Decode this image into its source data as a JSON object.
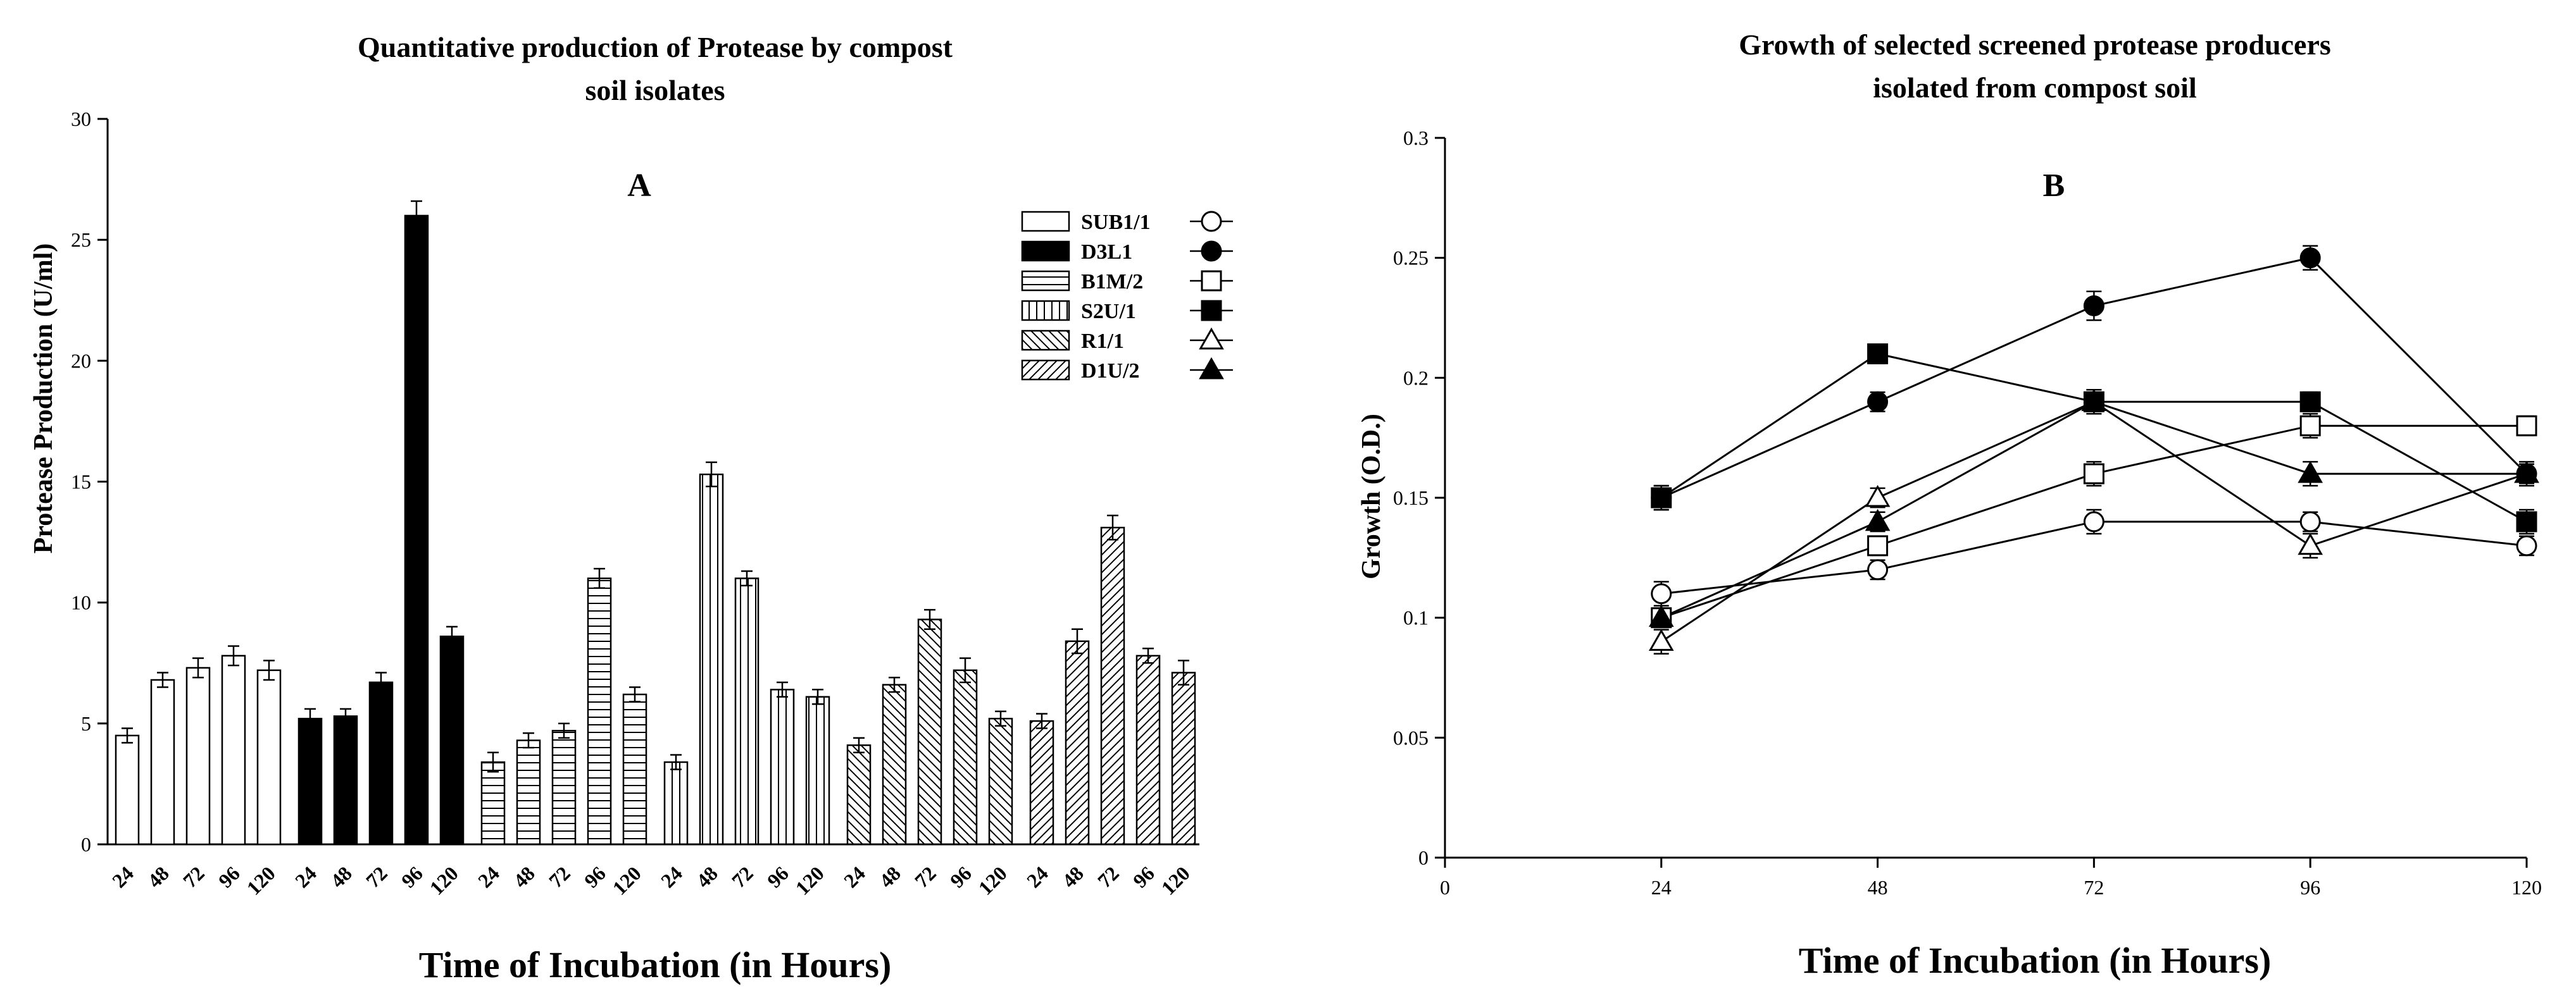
{
  "chart_data": [
    {
      "type": "bar",
      "panel": "A",
      "title": [
        "Quantitative production of Protease by compost",
        "soil isolates"
      ],
      "xlabel": "Time of Incubation (in Hours)",
      "ylabel": "Protease Production (U/ml)",
      "ylim": [
        0,
        30
      ],
      "yticks": [
        "0",
        "5",
        "10",
        "15",
        "20",
        "25",
        "30"
      ],
      "categories": [
        "24",
        "48",
        "72",
        "96",
        "120"
      ],
      "series": [
        {
          "name": "SUB1/1",
          "fill": "white",
          "values": [
            4.5,
            6.8,
            7.3,
            7.8,
            7.2
          ],
          "errors": [
            0.3,
            0.3,
            0.4,
            0.4,
            0.4
          ]
        },
        {
          "name": "D3L1",
          "fill": "black",
          "values": [
            5.2,
            5.3,
            6.7,
            26.0,
            8.6
          ],
          "errors": [
            0.4,
            0.3,
            0.4,
            0.6,
            0.4
          ]
        },
        {
          "name": "B1M/2",
          "fill": "hlines",
          "values": [
            3.4,
            4.3,
            4.7,
            11.0,
            6.2
          ],
          "errors": [
            0.4,
            0.3,
            0.3,
            0.4,
            0.3
          ]
        },
        {
          "name": "S2U/1",
          "fill": "vlines",
          "values": [
            3.4,
            15.3,
            11.0,
            6.4,
            6.1
          ],
          "errors": [
            0.3,
            0.5,
            0.3,
            0.3,
            0.3
          ]
        },
        {
          "name": "R1/1",
          "fill": "backdiag",
          "values": [
            4.1,
            6.6,
            9.3,
            7.2,
            5.2
          ],
          "errors": [
            0.3,
            0.3,
            0.4,
            0.5,
            0.3
          ]
        },
        {
          "name": "D1U/2",
          "fill": "fwddiag",
          "values": [
            5.1,
            8.4,
            13.1,
            7.8,
            7.1
          ],
          "errors": [
            0.3,
            0.5,
            0.5,
            0.3,
            0.5
          ]
        }
      ],
      "legend_position": "top-right"
    },
    {
      "type": "line",
      "panel": "B",
      "title": [
        "Growth of selected screened protease producers",
        "isolated from compost soil"
      ],
      "xlabel": "Time of Incubation (in Hours)",
      "ylabel": "Growth (O.D.)",
      "xlim": [
        0,
        120
      ],
      "xticks": [
        "0",
        "24",
        "48",
        "72",
        "96",
        "120"
      ],
      "ylim": [
        0,
        0.3
      ],
      "yticks": [
        "0",
        "0.05",
        "0.1",
        "0.15",
        "0.2",
        "0.25",
        "0.3"
      ],
      "x": [
        24,
        48,
        72,
        96,
        120
      ],
      "series": [
        {
          "name": "SUB1/1",
          "marker": "open-circle",
          "values": [
            0.11,
            0.12,
            0.14,
            0.14,
            0.13
          ],
          "errors": [
            0.005,
            0.004,
            0.005,
            0.004,
            0.004
          ]
        },
        {
          "name": "D3L1",
          "marker": "filled-circle",
          "values": [
            0.15,
            0.19,
            0.23,
            0.25,
            0.16
          ],
          "errors": [
            0.005,
            0.004,
            0.006,
            0.005,
            0.004
          ]
        },
        {
          "name": "B1M/2",
          "marker": "open-square",
          "values": [
            0.1,
            0.13,
            0.16,
            0.18,
            0.18
          ],
          "errors": [
            0.004,
            0.004,
            0.005,
            0.005,
            0.004
          ]
        },
        {
          "name": "S2U/1",
          "marker": "filled-square",
          "values": [
            0.15,
            0.21,
            0.19,
            0.19,
            0.14
          ],
          "errors": [
            0.005,
            0.004,
            0.005,
            0.004,
            0.005
          ]
        },
        {
          "name": "R1/1",
          "marker": "open-triangle",
          "values": [
            0.09,
            0.15,
            0.19,
            0.13,
            0.16
          ],
          "errors": [
            0.005,
            0.004,
            0.004,
            0.005,
            0.004
          ]
        },
        {
          "name": "D1U/2",
          "marker": "filled-triangle",
          "values": [
            0.1,
            0.14,
            0.19,
            0.16,
            0.16
          ],
          "errors": [
            0.004,
            0.004,
            0.005,
            0.005,
            0.005
          ]
        }
      ]
    }
  ]
}
